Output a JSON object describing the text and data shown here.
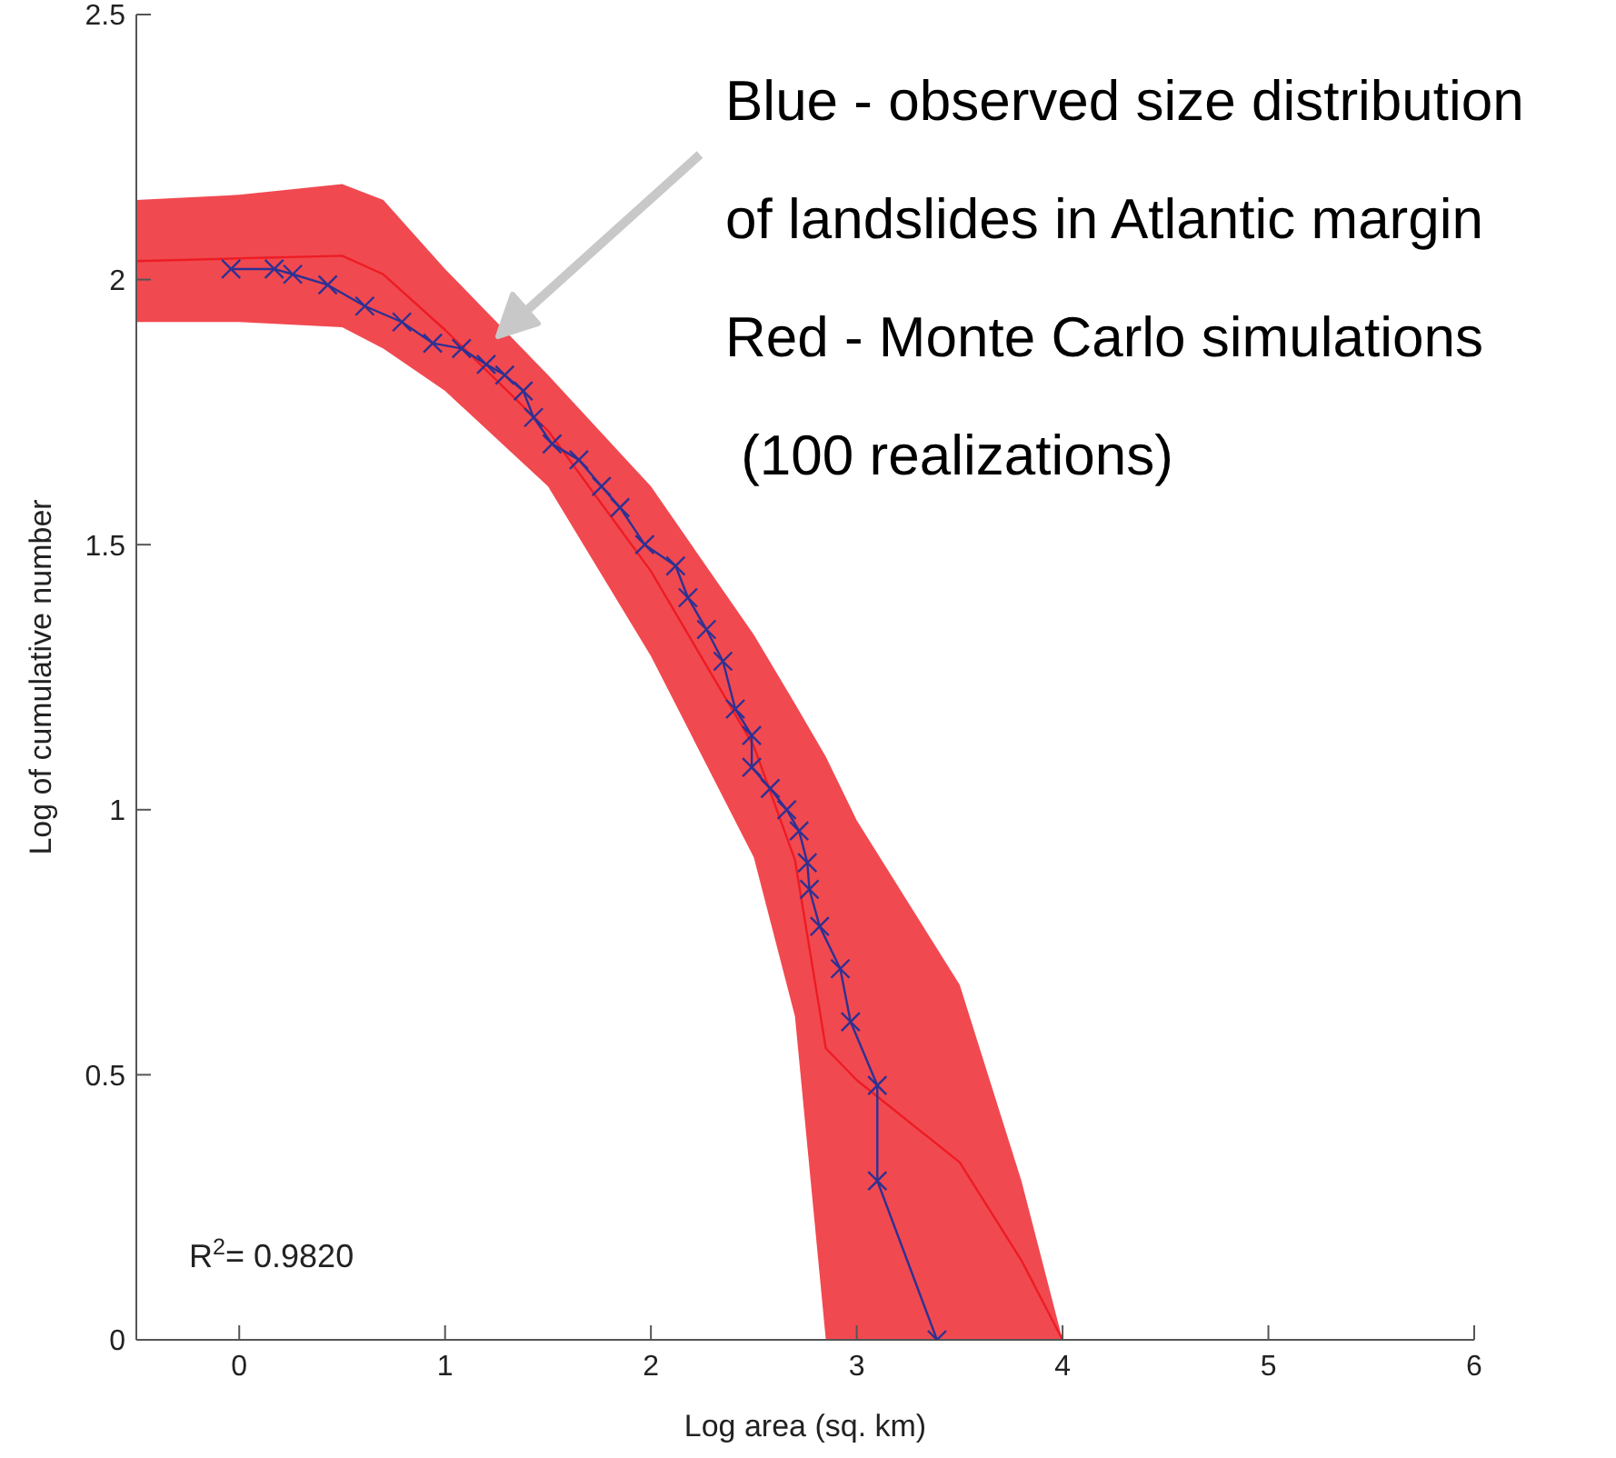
{
  "chart_data": {
    "type": "line",
    "xlabel": "Log area (sq. km)",
    "ylabel": "Log of cumulative number",
    "xlim": [
      -0.5,
      6
    ],
    "xticks": [
      0,
      1,
      2,
      3,
      4,
      5,
      6
    ],
    "ylim": [
      0,
      2.5
    ],
    "yticks": [
      0,
      0.5,
      1,
      1.5,
      2,
      2.5
    ],
    "annotations": [
      "Blue - observed size distribution",
      "of landslides in Atlantic margin",
      "Red - Monte Carlo simulations",
      " (100 realizations)",
      "R$^{2}$= 0.9820"
    ],
    "series": [
      {
        "type": "line",
        "color": "#ed1c24",
        "x": [
          -0.5,
          0,
          0.5,
          0.7,
          1,
          1.5,
          2,
          2.5,
          2.7,
          2.85,
          3,
          3.5,
          3.8,
          4
        ],
        "values": [
          2.035,
          2.04,
          2.045,
          2.01,
          1.905,
          1.715,
          1.45,
          1.12,
          0.905,
          0.55,
          0.49,
          0.335,
          0.15,
          0
        ],
        "lower": [
          1.92,
          1.92,
          1.91,
          1.87,
          1.79,
          1.61,
          1.29,
          0.91,
          0.61,
          0,
          0,
          0,
          0,
          0
        ],
        "upper": [
          2.15,
          2.16,
          2.18,
          2.15,
          2.02,
          1.82,
          1.61,
          1.33,
          1.2,
          1.1,
          0.98,
          0.67,
          0.3,
          0
        ]
      },
      {
        "type": "line",
        "color": "#2e3192",
        "marker": "cross",
        "x": [
          -0.04,
          0.17,
          0.26,
          0.43,
          0.61,
          0.79,
          0.94,
          1.08,
          1.2,
          1.29,
          1.38,
          1.43,
          1.52,
          1.65,
          1.76,
          1.85,
          1.97,
          2.12,
          2.18,
          2.27,
          2.35,
          2.41,
          2.49,
          2.49,
          2.58,
          2.66,
          2.72,
          2.76,
          2.77,
          2.82,
          2.92,
          2.97,
          3.1,
          3.1,
          3.39
        ],
        "values": [
          2.02,
          2.02,
          2.01,
          1.99,
          1.95,
          1.92,
          1.88,
          1.87,
          1.84,
          1.82,
          1.79,
          1.74,
          1.69,
          1.66,
          1.61,
          1.57,
          1.5,
          1.46,
          1.4,
          1.34,
          1.28,
          1.19,
          1.14,
          1.08,
          1.04,
          1.0,
          0.96,
          0.9,
          0.85,
          0.78,
          0.7,
          0.6,
          0.48,
          0.3,
          0
        ]
      }
    ]
  }
}
